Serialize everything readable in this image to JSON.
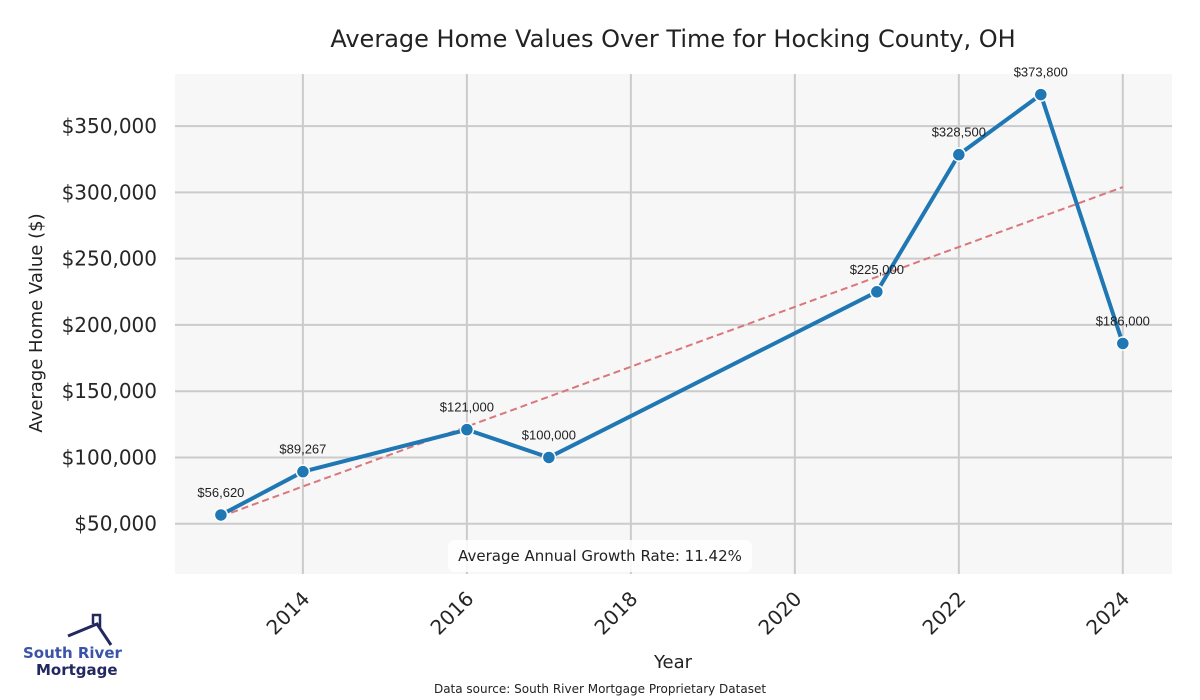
{
  "chart_data": {
    "type": "line",
    "title": "Average Home Values Over Time for Hocking County, OH",
    "xlabel": "Year",
    "ylabel": "Average Home Value ($)",
    "x": [
      2013,
      2014,
      2016,
      2017,
      2021,
      2022,
      2023,
      2024
    ],
    "series": [
      {
        "name": "Average Home Value",
        "color": "#1f77b4",
        "values": [
          56620,
          89267,
          121000,
          100000,
          225000,
          328500,
          373800,
          186000
        ],
        "labels": [
          "$56,620",
          "$89,267",
          "$121,000",
          "$100,000",
          "$225,000",
          "$328,500",
          "$373,800",
          "$186,000"
        ]
      }
    ],
    "trendline": {
      "name": "Linear trend",
      "color": "#d9777b",
      "style": "dashed",
      "x": [
        2013,
        2024
      ],
      "y": [
        55500,
        304000
      ]
    },
    "xticks": [
      2014,
      2016,
      2018,
      2020,
      2022,
      2024
    ],
    "xtick_labels": [
      "2014",
      "2016",
      "2018",
      "2020",
      "2022",
      "2024"
    ],
    "yticks": [
      50000,
      100000,
      150000,
      200000,
      250000,
      300000,
      350000
    ],
    "ytick_labels": [
      "$50,000",
      "$100,000",
      "$150,000",
      "$200,000",
      "$250,000",
      "$300,000",
      "$350,000"
    ],
    "xlim": [
      2012.44,
      2024.6
    ],
    "ylim": [
      12060,
      389350
    ],
    "grid": true,
    "annotation": "Average Annual Growth Rate: 11.42%"
  },
  "footer": {
    "source": "Data source: South River Mortgage Proprietary Dataset",
    "logo_line1": "South River",
    "logo_line2": "Mortgage"
  }
}
